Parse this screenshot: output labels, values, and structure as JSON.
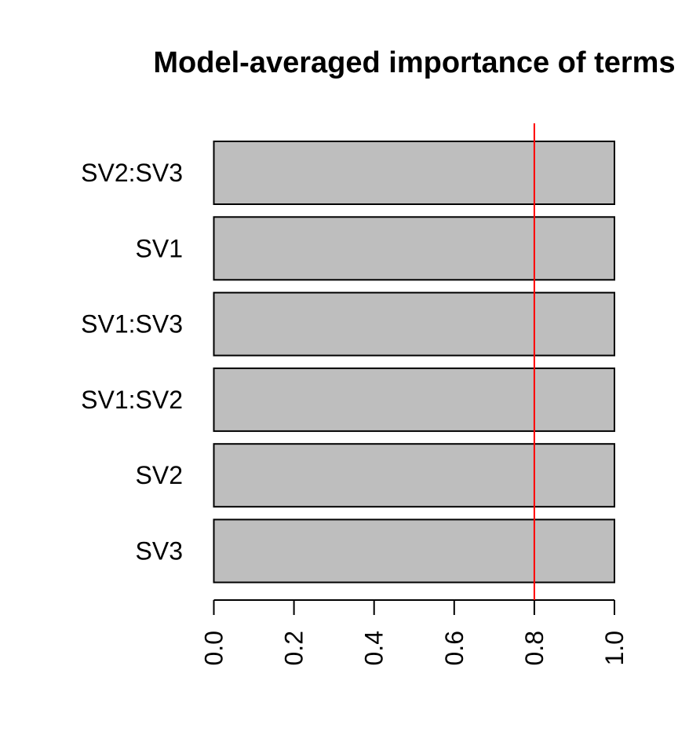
{
  "chart_data": {
    "type": "bar",
    "orientation": "horizontal",
    "title": "Model-averaged importance of terms",
    "xlabel": "",
    "ylabel": "",
    "categories": [
      "SV2:SV3",
      "SV1",
      "SV1:SV3",
      "SV1:SV2",
      "SV2",
      "SV3"
    ],
    "values": [
      1.0,
      1.0,
      1.0,
      1.0,
      1.0,
      1.0
    ],
    "xlim": [
      0,
      1
    ],
    "xticks": [
      "0.0",
      "0.2",
      "0.4",
      "0.6",
      "0.8",
      "1.0"
    ],
    "tick_label_rotation": "vertical",
    "reference_line": {
      "value": 0.8,
      "color": "#ff0000"
    },
    "bar_fill": "#bebebe",
    "bar_stroke": "#000000",
    "grid": false,
    "legend": "none"
  }
}
